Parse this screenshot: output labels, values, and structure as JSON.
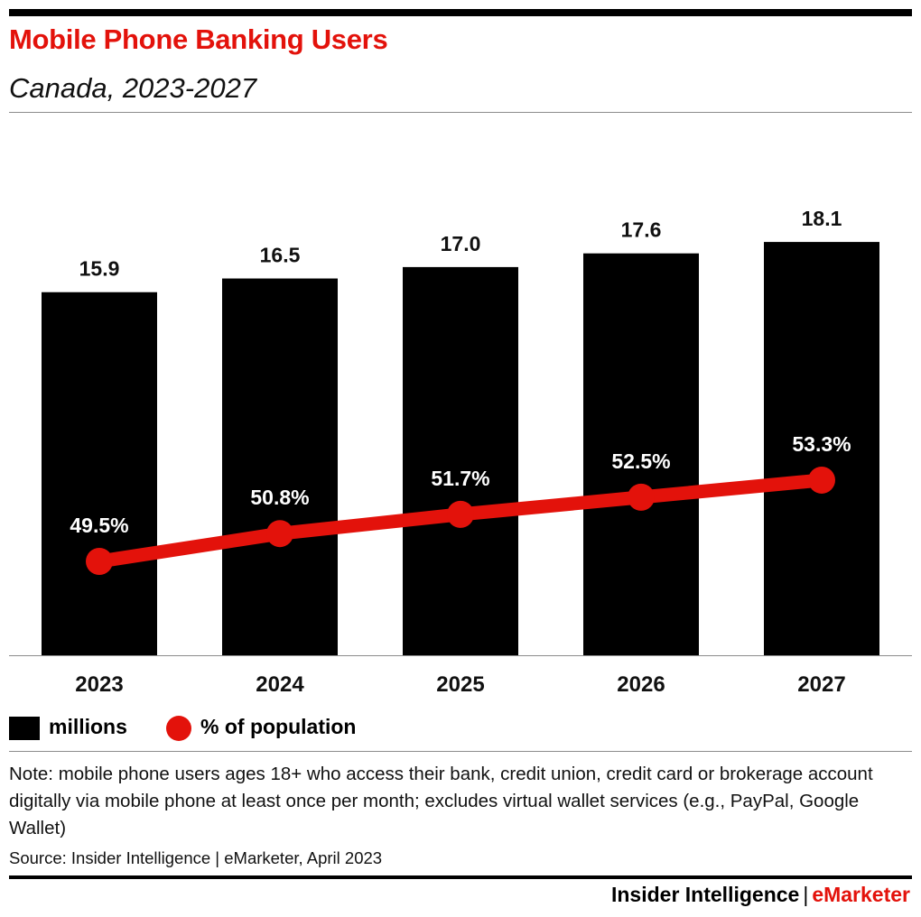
{
  "header": {
    "title": "Mobile Phone Banking Users",
    "subtitle": "Canada, 2023-2027"
  },
  "chart_data": {
    "type": "bar",
    "categories": [
      "2023",
      "2024",
      "2025",
      "2026",
      "2027"
    ],
    "series": [
      {
        "name": "millions",
        "type": "bar",
        "values": [
          15.9,
          16.5,
          17.0,
          17.6,
          18.1
        ],
        "labels": [
          "15.9",
          "16.5",
          "17.0",
          "17.6",
          "18.1"
        ],
        "color": "#000000"
      },
      {
        "name": "% of population",
        "type": "line",
        "values": [
          49.5,
          50.8,
          51.7,
          52.5,
          53.3
        ],
        "labels": [
          "49.5%",
          "50.8%",
          "51.7%",
          "52.5%",
          "53.3%"
        ],
        "color": "#e3120b"
      }
    ],
    "ylim": [
      0,
      20
    ],
    "line_ylim": [
      40,
      56
    ],
    "grid": false,
    "legend": "bottom-left"
  },
  "legend": {
    "bar_label": "millions",
    "line_label": "% of population"
  },
  "footer": {
    "note": "Note: mobile phone users ages 18+ who access their bank, credit union, credit card or brokerage account digitally via mobile phone at least once per month; excludes virtual wallet services (e.g., PayPal, Google Wallet)",
    "source": "Source: Insider Intelligence | eMarketer, April 2023",
    "brand_left": "Insider Intelligence",
    "brand_sep": "|",
    "brand_right": "eMarketer"
  }
}
